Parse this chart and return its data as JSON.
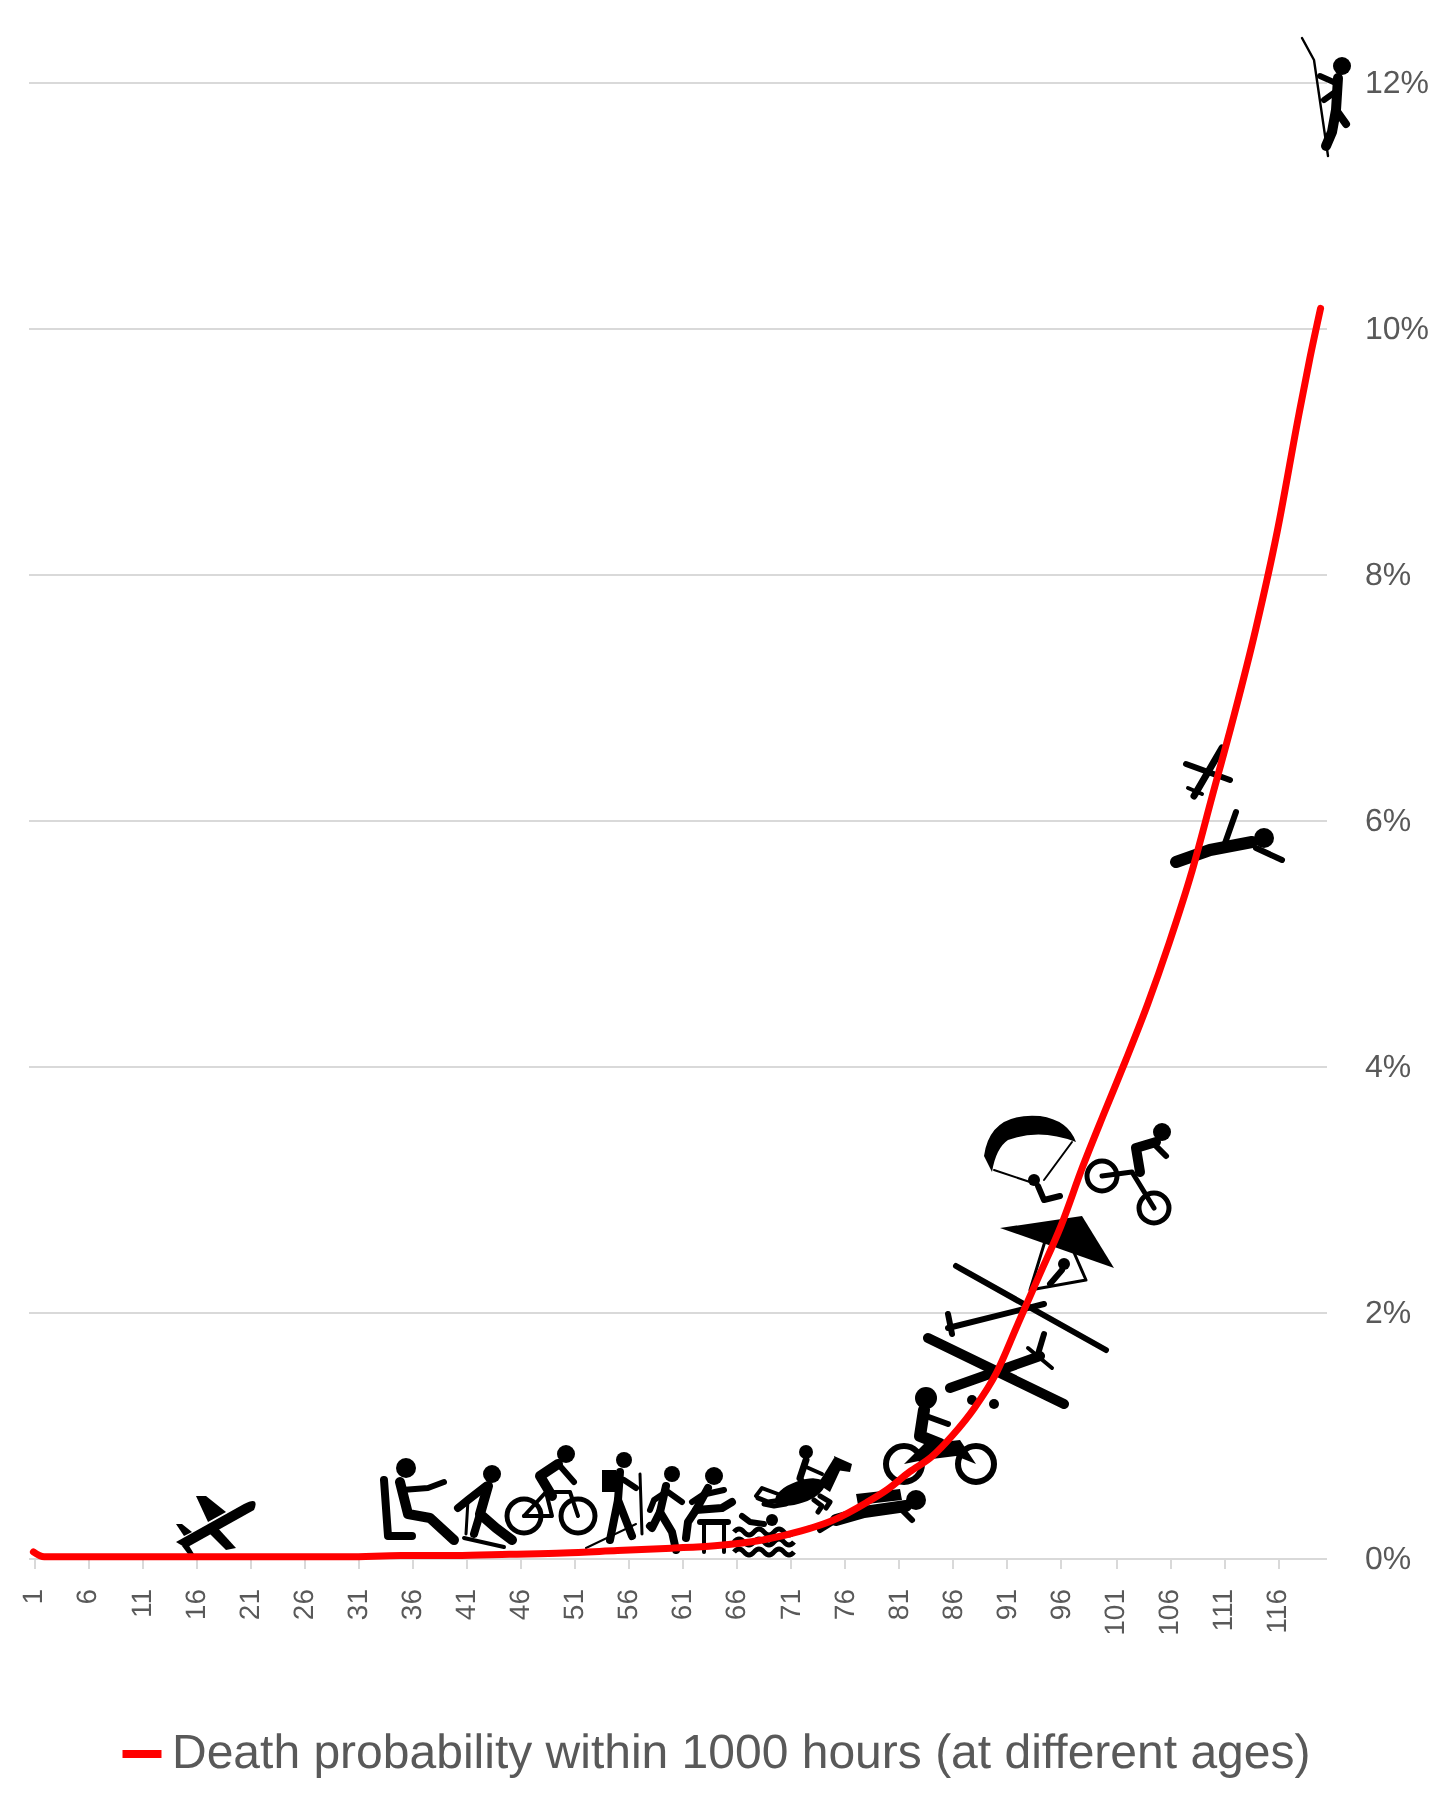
{
  "chart_data": {
    "type": "line",
    "x": [
      1,
      2,
      5,
      10,
      15,
      20,
      25,
      30,
      35,
      40,
      45,
      50,
      55,
      60,
      64,
      68,
      72,
      75,
      78,
      80,
      82,
      84,
      86,
      88,
      90,
      92,
      94,
      96,
      98,
      100,
      102,
      104,
      106,
      108,
      110,
      112,
      114,
      116,
      118,
      119,
      120
    ],
    "series": [
      {
        "name": "Death probability within 1000 hours (at different ages)",
        "color": "#ff0000",
        "values": [
          0.05,
          0.01,
          0.01,
          0.01,
          0.01,
          0.01,
          0.01,
          0.01,
          0.02,
          0.02,
          0.03,
          0.04,
          0.06,
          0.08,
          0.1,
          0.14,
          0.22,
          0.31,
          0.45,
          0.56,
          0.7,
          0.82,
          1.0,
          1.22,
          1.5,
          1.9,
          2.3,
          2.7,
          3.18,
          3.62,
          4.05,
          4.5,
          5.0,
          5.55,
          6.2,
          6.85,
          7.55,
          8.35,
          9.3,
          9.75,
          10.16
        ]
      }
    ],
    "xlim": [
      0.5,
      120.5
    ],
    "xticks": [
      1,
      6,
      11,
      16,
      21,
      26,
      31,
      36,
      41,
      46,
      51,
      56,
      61,
      66,
      71,
      76,
      81,
      86,
      91,
      96,
      101,
      106,
      111,
      116
    ],
    "ylim": [
      0,
      12
    ],
    "yticks": [
      {
        "value": 0,
        "label": "0%"
      },
      {
        "value": 2,
        "label": "2%"
      },
      {
        "value": 4,
        "label": "4%"
      },
      {
        "value": 6,
        "label": "6%"
      },
      {
        "value": 8,
        "label": "8%"
      },
      {
        "value": 10,
        "label": "10%"
      },
      {
        "value": 12,
        "label": "12%"
      }
    ],
    "grid": "y",
    "legend": "bottom"
  }
}
